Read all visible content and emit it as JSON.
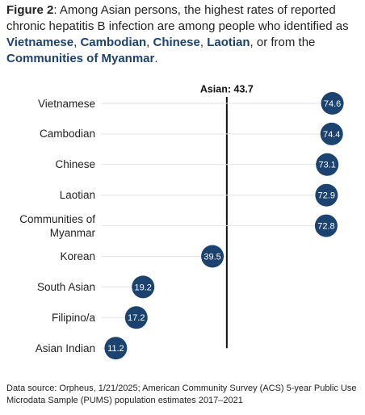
{
  "chart_data": {
    "type": "dot",
    "title": [
      "Figure 2",
      ": Among Asian persons, the highest rates of reported chronic hepatitis B infection are among people who identified as ",
      "Vietnamese",
      ", ",
      "Cambodian",
      ", ",
      "Chinese",
      ", ",
      "Laotian",
      ", or from the ",
      "Communities of Myanmar",
      "."
    ],
    "categories": [
      "Vietnamese",
      "Cambodian",
      "Chinese",
      "Laotian",
      "Communities of Myanmar",
      "Korean",
      "South Asian",
      "Filipino/a",
      "Asian Indian"
    ],
    "values": [
      74.6,
      74.4,
      73.1,
      72.9,
      72.8,
      39.5,
      19.2,
      17.2,
      11.2
    ],
    "color": "#1c4270",
    "reference": {
      "label": "Asian: 43.7",
      "value": 43.7
    },
    "note": "Data source: Orpheus, 1/21/2025; American Community Survey (ACS) 5-year Public Use Microdata Sample (PUMS) population estimates 2017–2021"
  }
}
